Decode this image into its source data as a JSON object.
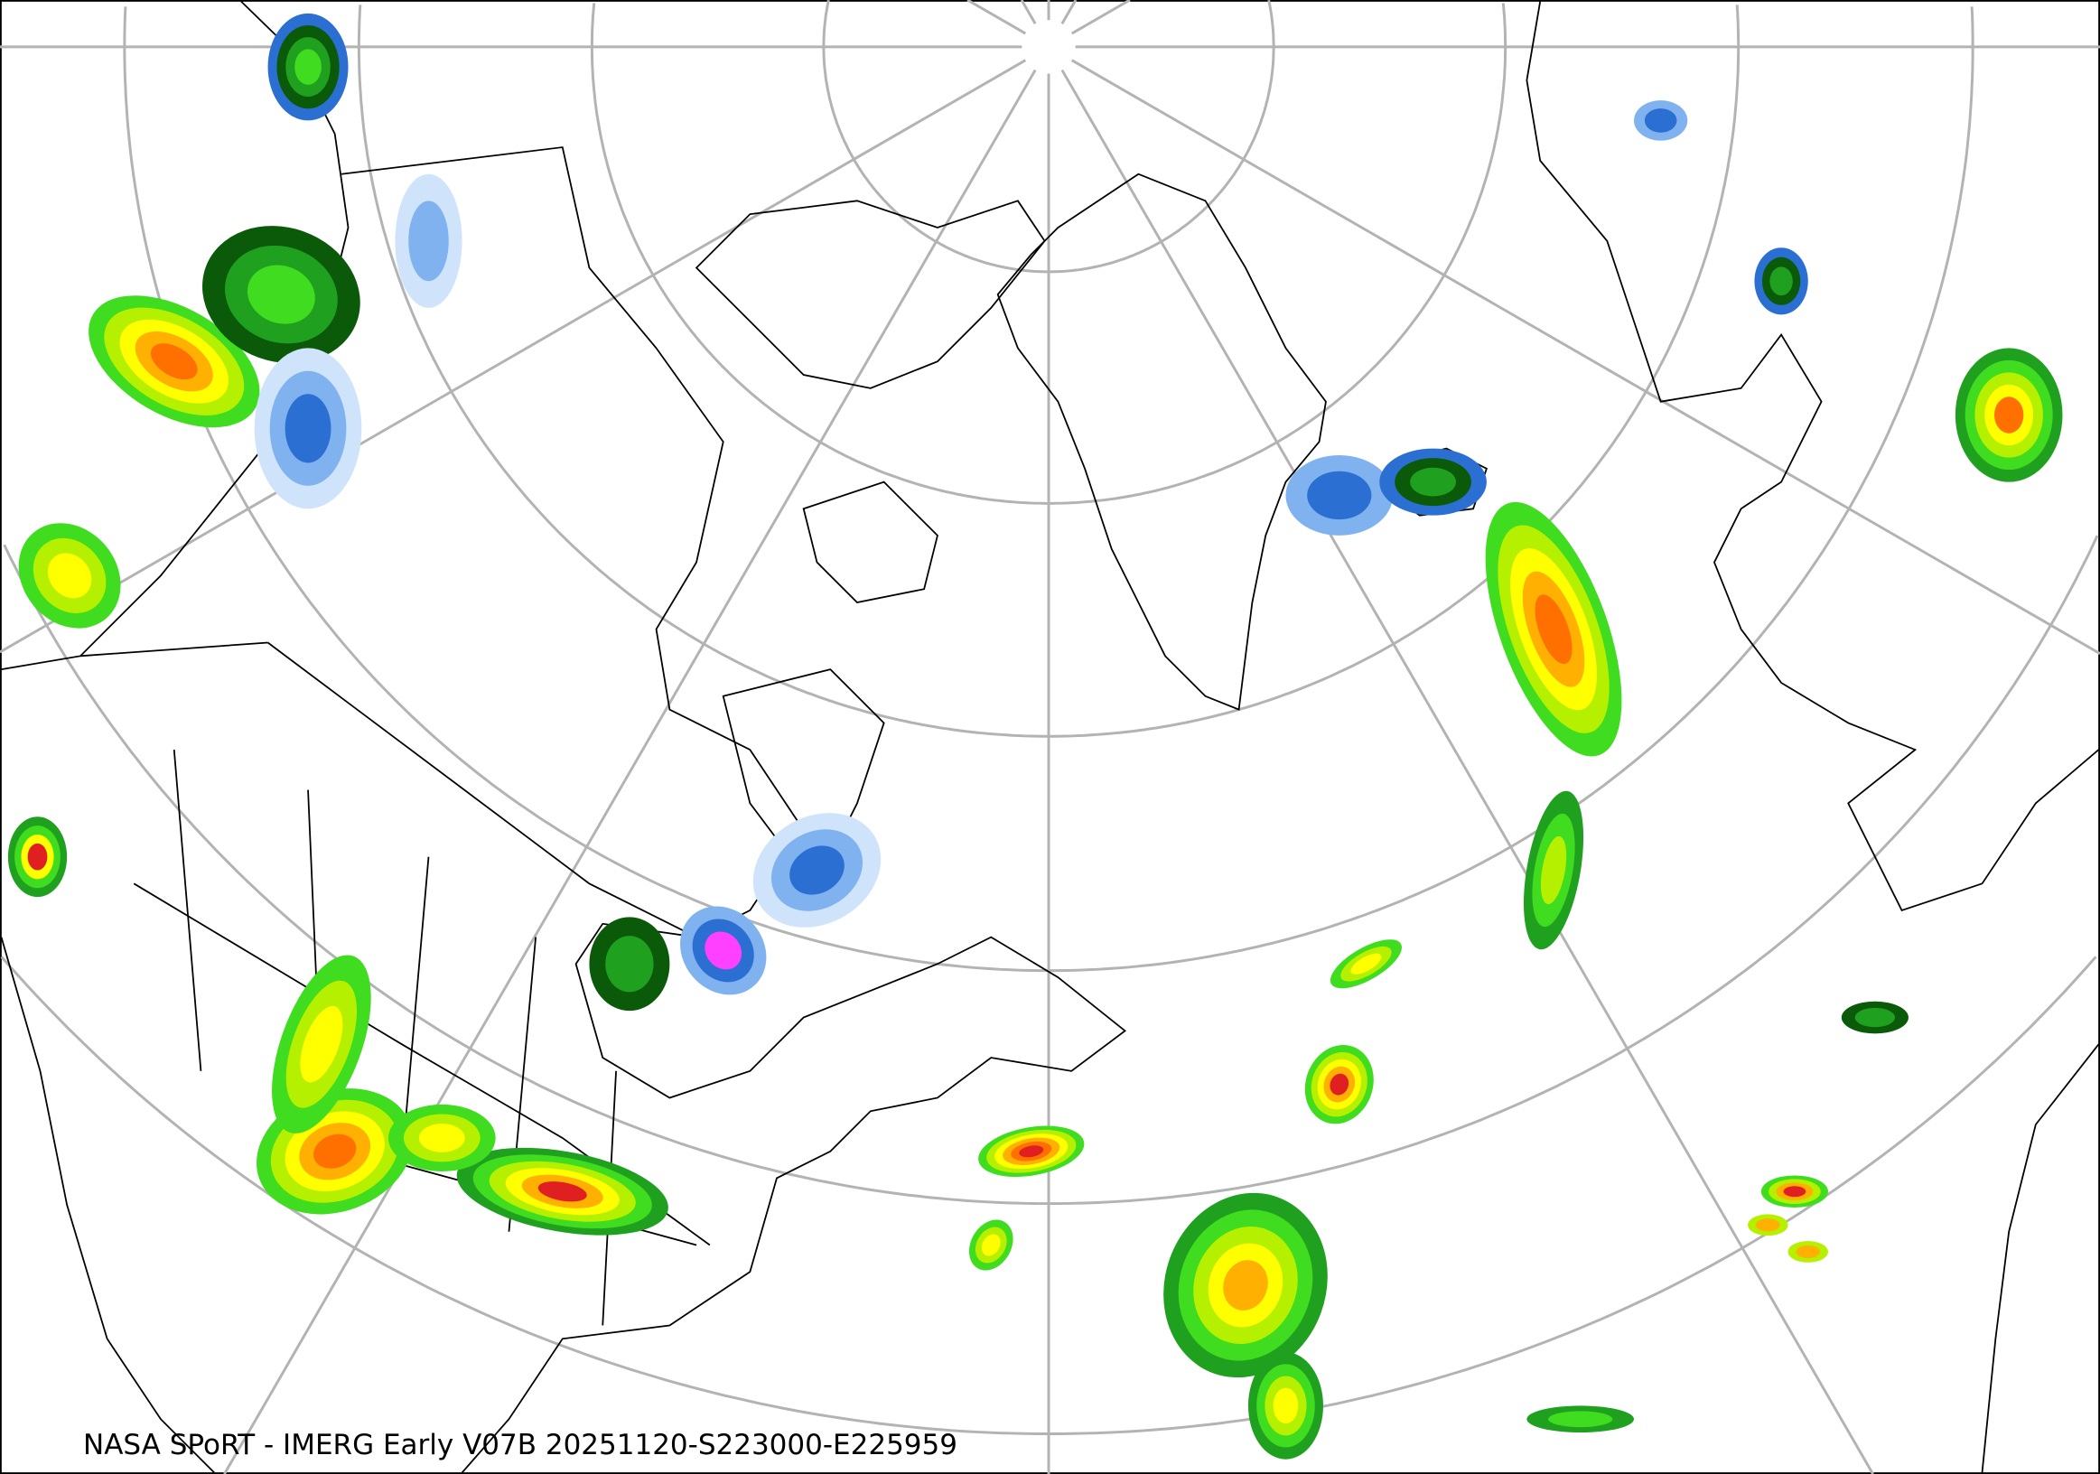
{
  "map": {
    "caption": "NASA SPoRT - IMERG Early V07B 20251120-S223000-E225959",
    "projection": "polar stereographic (north pole)",
    "graticule_color": "#b3b3b3",
    "border_color": "#000000",
    "precip_colors": [
      "#cfe4fb",
      "#7fb2ee",
      "#2a6fd1",
      "#0a5a0a",
      "#1fa01f",
      "#3fdc1f",
      "#b5f000",
      "#ffff00",
      "#ffb000",
      "#ff7000",
      "#e02020",
      "#ff40ff"
    ]
  }
}
